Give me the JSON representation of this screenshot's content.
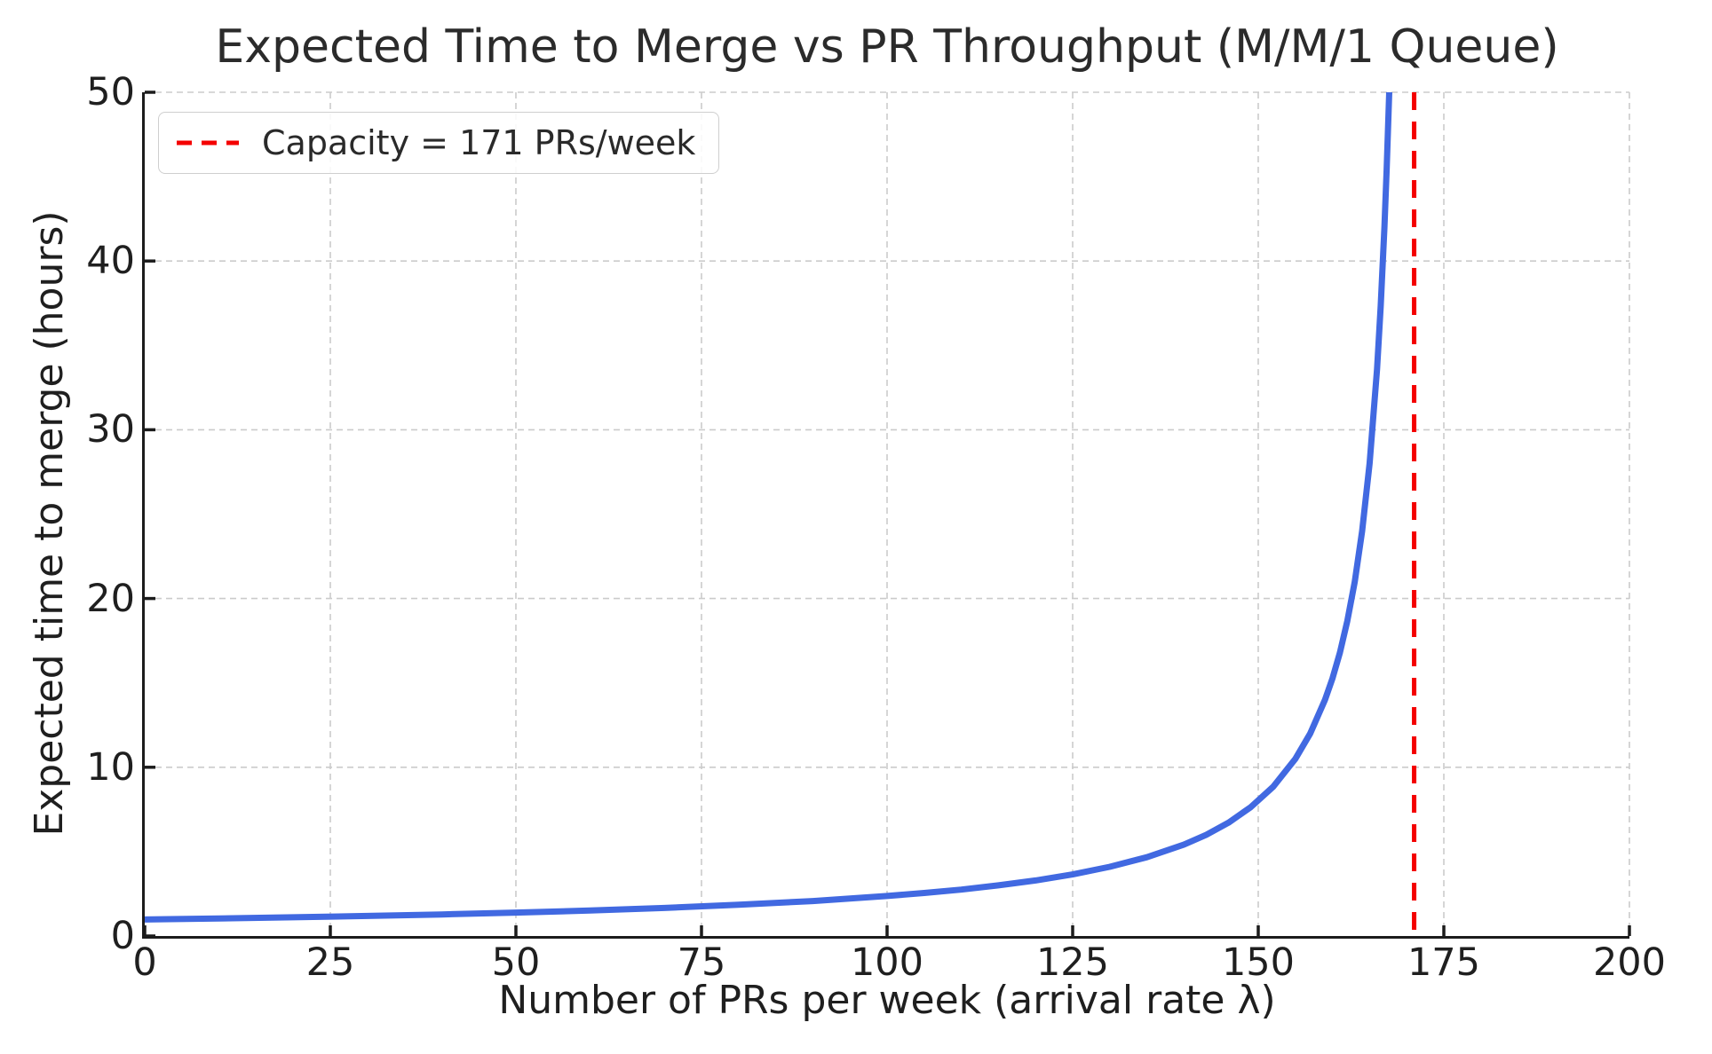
{
  "chart_data": {
    "type": "line",
    "title": "Expected Time to Merge vs PR Throughput (M/M/1 Queue)",
    "xlabel": "Number of PRs per week (arrival rate λ)",
    "ylabel": "Expected time to merge (hours)",
    "xlim": [
      0,
      200
    ],
    "ylim": [
      0,
      50
    ],
    "xticks": [
      0,
      25,
      50,
      75,
      100,
      125,
      150,
      175,
      200
    ],
    "yticks": [
      0,
      10,
      20,
      30,
      40,
      50
    ],
    "grid": {
      "visible": true,
      "style": "dashed",
      "color": "#cbcbcb"
    },
    "axis_color": "#1c1c1c",
    "legend": {
      "position": "upper-left",
      "entries": [
        {
          "label": "Capacity = 171 PRs/week",
          "color": "#f40000",
          "style": "dashed"
        }
      ]
    },
    "series": [
      {
        "name": "expected-merge-time-curve",
        "type": "line",
        "color": "#4169e1",
        "width": 7,
        "x": [
          0,
          10,
          20,
          30,
          40,
          50,
          60,
          70,
          80,
          90,
          100,
          105,
          110,
          115,
          120,
          125,
          130,
          135,
          140,
          143,
          146,
          149,
          152,
          155,
          157,
          159,
          160,
          161,
          162,
          163,
          164,
          165,
          166,
          166.5,
          167,
          167.3,
          167.64
        ],
        "y": [
          0.98,
          1.04,
          1.11,
          1.19,
          1.28,
          1.39,
          1.51,
          1.66,
          1.85,
          2.07,
          2.37,
          2.55,
          2.75,
          3.0,
          3.29,
          3.65,
          4.1,
          4.67,
          5.42,
          6.0,
          6.72,
          7.64,
          8.84,
          10.5,
          12.0,
          14.0,
          15.27,
          16.8,
          18.67,
          21.0,
          24.0,
          28.0,
          33.6,
          37.33,
          42.0,
          45.41,
          50.0
        ]
      },
      {
        "name": "capacity-vline",
        "type": "vline",
        "color": "#f40000",
        "width": 5,
        "dash": [
          20,
          13
        ],
        "x": 171
      }
    ]
  }
}
